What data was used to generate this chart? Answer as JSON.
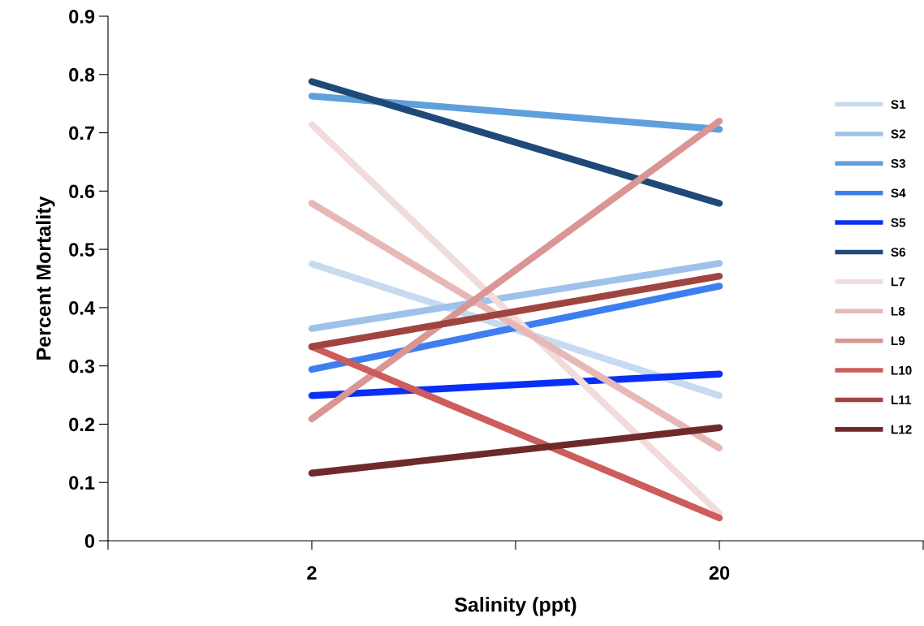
{
  "chart_data": {
    "type": "line",
    "xlabel": "Salinity (ppt)",
    "ylabel": "Percent Mortality",
    "x": [
      2,
      20
    ],
    "xlim": [
      -7,
      29
    ],
    "xticks": [
      {
        "value": -7,
        "label": null
      },
      2,
      {
        "value": 11,
        "label": null
      },
      20,
      {
        "value": 29,
        "label": null
      }
    ],
    "ylim": [
      0,
      0.9
    ],
    "yticks": [
      {
        "value": 0,
        "label": "0"
      },
      0.1,
      0.2,
      0.3,
      0.4,
      0.5,
      0.6,
      0.7,
      0.8,
      0.9
    ],
    "grid": false,
    "legend": "right",
    "marker": "none",
    "line_style": "solid",
    "series": [
      {
        "name": "S1",
        "color": "#c6dbf0",
        "values": [
          0.475,
          0.249
        ]
      },
      {
        "name": "S2",
        "color": "#9ec2ea",
        "values": [
          0.364,
          0.476
        ]
      },
      {
        "name": "S3",
        "color": "#5f9fdc",
        "values": [
          0.763,
          0.706
        ]
      },
      {
        "name": "S4",
        "color": "#3d7ff0",
        "values": [
          0.294,
          0.437
        ]
      },
      {
        "name": "S5",
        "color": "#0a2ff5",
        "values": [
          0.249,
          0.286
        ]
      },
      {
        "name": "S6",
        "color": "#1f4a78",
        "values": [
          0.788,
          0.579
        ]
      },
      {
        "name": "L7",
        "color": "#f2dcdb",
        "values": [
          0.714,
          0.047
        ]
      },
      {
        "name": "L8",
        "color": "#e6b9b8",
        "values": [
          0.579,
          0.159
        ]
      },
      {
        "name": "L9",
        "color": "#d99694",
        "values": [
          0.209,
          0.72
        ]
      },
      {
        "name": "L10",
        "color": "#cd5c5c",
        "values": [
          0.333,
          0.039
        ]
      },
      {
        "name": "L11",
        "color": "#a0443f",
        "values": [
          0.333,
          0.454
        ]
      },
      {
        "name": "L12",
        "color": "#6e2a2a",
        "values": [
          0.116,
          0.194
        ]
      }
    ]
  }
}
